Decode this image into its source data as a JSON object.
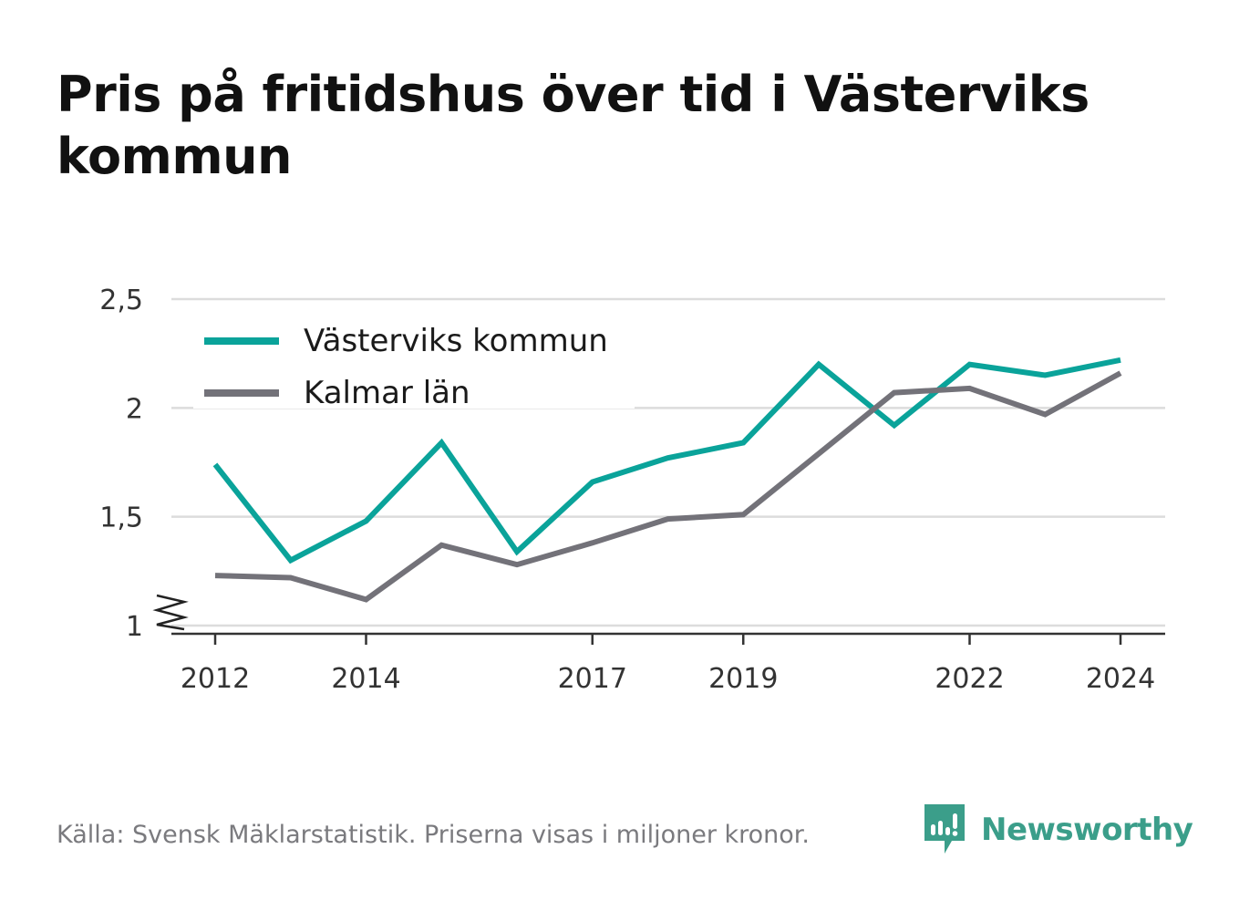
{
  "title": "Pris på fritidshus över tid i Västerviks kommun",
  "footer": {
    "source": "Källa: Svensk Mäklarstatistik. Priserna visas i miljoner kronor.",
    "brand": "Newsworthy",
    "brand_color": "#3b9e8a"
  },
  "chart_data": {
    "type": "line",
    "title": "Pris på fritidshus över tid i Västerviks kommun",
    "xlabel": "",
    "ylabel": "",
    "x": [
      2012,
      2013,
      2014,
      2015,
      2016,
      2017,
      2018,
      2019,
      2020,
      2021,
      2022,
      2023,
      2024
    ],
    "x_ticks": [
      2012,
      2014,
      2017,
      2019,
      2022,
      2024
    ],
    "x_tick_labels": [
      "2012",
      "2014",
      "2017",
      "2019",
      "2022",
      "2024"
    ],
    "y_ticks": [
      1,
      1.5,
      2,
      2.5
    ],
    "y_tick_labels": [
      "1",
      "1,5",
      "2",
      "2,5"
    ],
    "ylim": [
      1,
      2.5
    ],
    "axis_break": true,
    "grid": true,
    "legend_position": "top-left",
    "series": [
      {
        "name": "Västerviks kommun",
        "color": "#0aa39a",
        "values": [
          1.74,
          1.3,
          1.48,
          1.84,
          1.34,
          1.66,
          1.77,
          1.84,
          2.2,
          1.92,
          2.2,
          2.15,
          2.22
        ]
      },
      {
        "name": "Kalmar län",
        "color": "#737279",
        "values": [
          1.23,
          1.22,
          1.12,
          1.37,
          1.28,
          1.38,
          1.49,
          1.51,
          1.79,
          2.07,
          2.09,
          1.97,
          2.16
        ]
      }
    ]
  }
}
